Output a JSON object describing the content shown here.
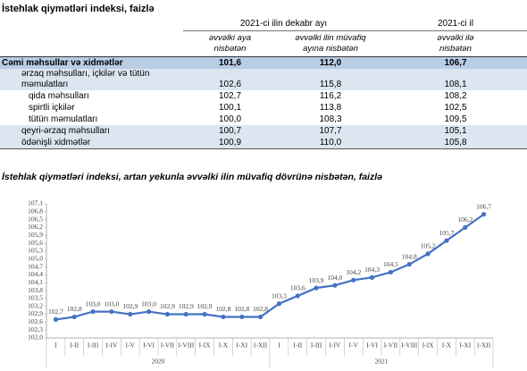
{
  "title": "İstehlak qiymətləri indeksi, faizlə",
  "table": {
    "header": {
      "group1": "2021-ci ilin dekabr ayı",
      "group2": "2021-ci il",
      "columns": [
        "əvvəlki aya nisbətən",
        "əvvəlki ilin müvafiq ayına nisbətən",
        "əvvəlki ilə nisbətən"
      ]
    },
    "rows": [
      [
        "Cəmi məhsullar və xidmətlər",
        "101,6",
        "112,0",
        "106,7"
      ],
      [
        "ərzaq məhsulları, içkilər və tütün məmulatları",
        "102,6",
        "115,8",
        "108,1"
      ],
      [
        "qida məhsulları",
        "102,7",
        "116,2",
        "108,2"
      ],
      [
        "spirtli içkilər",
        "100,1",
        "113,8",
        "102,5"
      ],
      [
        "tütün məmulatları",
        "100,0",
        "108,3",
        "109,5"
      ],
      [
        "qeyri-ərzaq məhsulları",
        "100,7",
        "107,7",
        "105,1"
      ],
      [
        "ödənişli xidmətlər",
        "100,9",
        "110,0",
        "105,8"
      ]
    ]
  },
  "chart_data": {
    "type": "line",
    "title": "İstehlak qiymətləri indeksi, artan yekunla əvvəlki ilin müvafiq dövrünə nisbətən, faizlə",
    "categories": [
      "I",
      "I-II",
      "I-III",
      "I-IV",
      "I-V",
      "I-VI",
      "I-VII",
      "I-VIII",
      "I-IX",
      "I-X",
      "I-XI",
      "I-XII",
      "I",
      "I-II",
      "I-III",
      "I-IV",
      "I-V",
      "I-VI",
      "I-VII",
      "I-VIII",
      "I-IX",
      "I-X",
      "I-XI",
      "I-XII"
    ],
    "groups": [
      "2020",
      "2021"
    ],
    "values": [
      102.7,
      102.8,
      103.0,
      103.0,
      102.9,
      103.0,
      102.9,
      102.9,
      102.9,
      102.8,
      102.8,
      102.8,
      103.3,
      103.6,
      103.9,
      104.0,
      104.2,
      104.3,
      104.5,
      104.8,
      105.2,
      105.7,
      106.2,
      106.7
    ],
    "value_labels": [
      "102,7",
      "102,8",
      "103,0",
      "103,0",
      "102,9",
      "103,0",
      "102,9",
      "102,9",
      "102,9",
      "102,8",
      "102,8",
      "102,8",
      "103,3",
      "103,6",
      "103,9",
      "104,0",
      "104,2",
      "104,3",
      "104,5",
      "104,8",
      "105,2",
      "105,7",
      "106,2",
      "106,7"
    ],
    "color": "#4472c4",
    "ylim": [
      102.0,
      107.1
    ],
    "yticks": [
      {
        "value": 102.0,
        "label": "102,0"
      },
      {
        "value": 102.3,
        "label": "102,3"
      },
      {
        "value": 102.6,
        "label": "102,6"
      },
      {
        "value": 102.9,
        "label": "102,9"
      },
      {
        "value": 103.2,
        "label": "103,2"
      },
      {
        "value": 103.5,
        "label": "103,5"
      },
      {
        "value": 103.8,
        "label": "103,8"
      },
      {
        "value": 104.1,
        "label": "104,1"
      },
      {
        "value": 104.4,
        "label": "104,4"
      },
      {
        "value": 104.7,
        "label": "104,7"
      },
      {
        "value": 105.0,
        "label": "105,0"
      },
      {
        "value": 105.3,
        "label": "105,3"
      },
      {
        "value": 105.6,
        "label": "105,6"
      },
      {
        "value": 105.9,
        "label": "105,9"
      },
      {
        "value": 106.2,
        "label": "106,2"
      },
      {
        "value": 106.5,
        "label": "106,5"
      },
      {
        "value": 106.8,
        "label": "106,8"
      },
      {
        "value": 107.1,
        "label": "107,1"
      }
    ],
    "grid": false
  }
}
